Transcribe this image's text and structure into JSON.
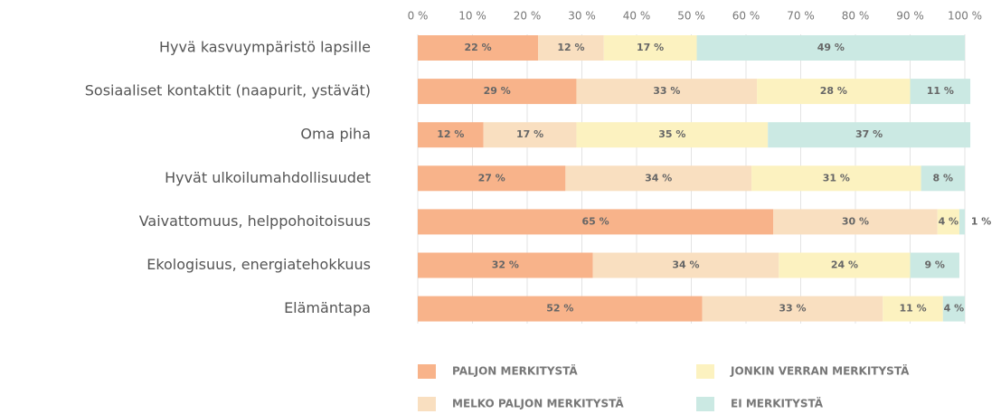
{
  "chart_data": {
    "type": "stacked_barh",
    "categories": [
      "Hyvä kasvuympäristö lapsille",
      "Sosiaaliset kontaktit (naapurit, ystävät)",
      "Oma piha",
      "Hyvät ulkoilumahdollisuudet",
      "Vaivattomuus, helppohoitoisuus",
      "Ekologisuus, energiatehokkuus",
      "Elämäntapa"
    ],
    "series": [
      {
        "name": "PALJON MERKITYSTÄ",
        "color": "#f8b38a",
        "values": [
          22,
          29,
          12,
          27,
          65,
          32,
          52
        ],
        "value_labels": [
          "22 %",
          "29 %",
          "12 %",
          "27 %",
          "65 %",
          "32 %",
          "52 %"
        ]
      },
      {
        "name": "MELKO PALJON MERKITYSTÄ",
        "color": "#f9dfc0",
        "values": [
          12,
          33,
          17,
          34,
          30,
          34,
          33
        ],
        "value_labels": [
          "12 %",
          "33 %",
          "17 %",
          "34 %",
          "30 %",
          "34 %",
          "33 %"
        ]
      },
      {
        "name": "JONKIN VERRAN MERKITYSTÄ",
        "color": "#fcf2c0",
        "values": [
          17,
          28,
          35,
          31,
          4,
          24,
          11
        ],
        "value_labels": [
          "17 %",
          "28 %",
          "35 %",
          "31 %",
          "4 %",
          "24 %",
          "11 %"
        ]
      },
      {
        "name": "EI MERKITYSTÄ",
        "color": "#cbe9e3",
        "values": [
          49,
          11,
          37,
          8,
          1,
          9,
          4
        ],
        "value_labels": [
          "49 %",
          "11 %",
          "37 %",
          "8 %",
          "1 %",
          "9 %",
          "4 %"
        ]
      }
    ],
    "xlim": [
      0,
      100
    ],
    "xticks": [
      {
        "value": 0,
        "label": "0 %"
      },
      {
        "value": 10,
        "label": "10 %"
      },
      {
        "value": 20,
        "label": "20 %"
      },
      {
        "value": 30,
        "label": "30 %"
      },
      {
        "value": 40,
        "label": "40 %"
      },
      {
        "value": 50,
        "label": "50 %"
      },
      {
        "value": 60,
        "label": "60 %"
      },
      {
        "value": 70,
        "label": "70 %"
      },
      {
        "value": 80,
        "label": "80 %"
      },
      {
        "value": 90,
        "label": "90 %"
      },
      {
        "value": 100,
        "label": "100 %"
      }
    ],
    "grid": true
  }
}
